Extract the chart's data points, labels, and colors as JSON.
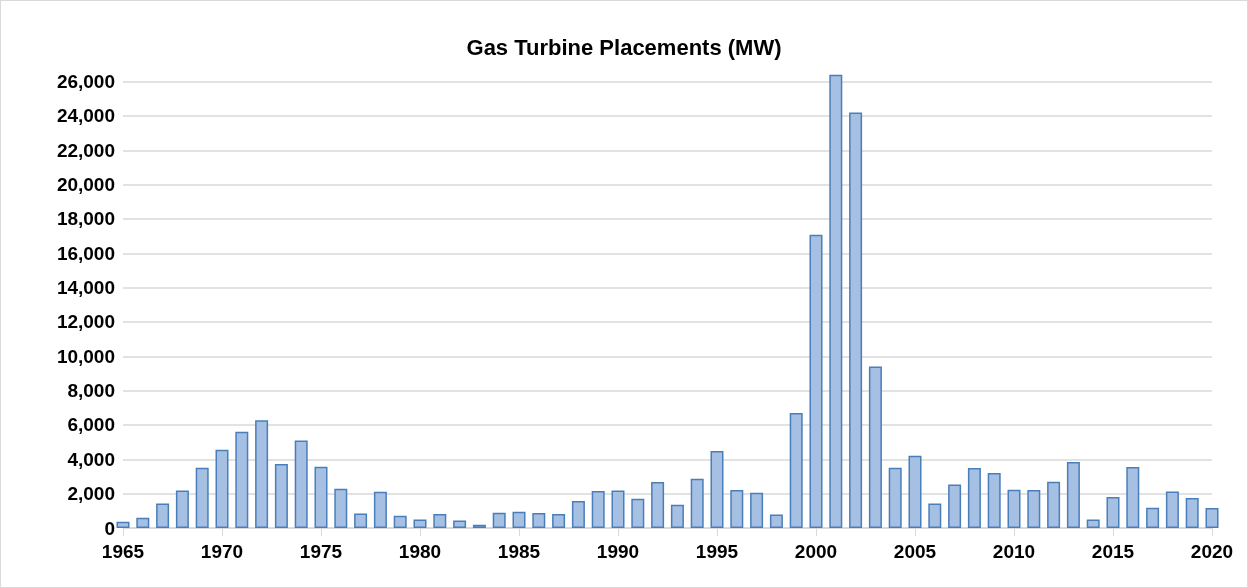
{
  "chart_data": {
    "type": "bar",
    "title": "Gas Turbine Placements (MW)",
    "x": [
      1965,
      1966,
      1967,
      1968,
      1969,
      1970,
      1971,
      1972,
      1973,
      1974,
      1975,
      1976,
      1977,
      1978,
      1979,
      1980,
      1981,
      1982,
      1983,
      1984,
      1985,
      1986,
      1987,
      1988,
      1989,
      1990,
      1991,
      1992,
      1993,
      1994,
      1995,
      1996,
      1997,
      1998,
      1999,
      2000,
      2001,
      2002,
      2003,
      2004,
      2005,
      2006,
      2007,
      2008,
      2009,
      2010,
      2011,
      2012,
      2013,
      2014,
      2015,
      2016,
      2017,
      2018,
      2019,
      2020
    ],
    "values": [
      370,
      600,
      1420,
      2190,
      3510,
      4560,
      5610,
      6270,
      3730,
      5090,
      3570,
      2290,
      850,
      2110,
      720,
      490,
      810,
      430,
      190,
      890,
      950,
      870,
      810,
      1570,
      2150,
      2190,
      1710,
      2680,
      1360,
      2870,
      4480,
      2210,
      2060,
      780,
      6700,
      17080,
      26400,
      24200,
      9400,
      3510,
      4210,
      1420,
      2530,
      3490,
      3200,
      2230,
      2210,
      2700,
      3840,
      500,
      1800,
      3550,
      1180,
      2130,
      1750,
      1160
    ],
    "color": "#a6c0e4",
    "xlim": [
      1965,
      2020
    ],
    "xticks": [
      1965,
      1970,
      1975,
      1980,
      1985,
      1990,
      1995,
      2000,
      2005,
      2010,
      2015,
      2020
    ],
    "ylim": [
      0,
      26500
    ],
    "yticks": [
      0,
      {
        "value": 2000,
        "label": "2,000"
      },
      {
        "value": 4000,
        "label": "4,000"
      },
      {
        "value": 6000,
        "label": "6,000"
      },
      {
        "value": 8000,
        "label": "8,000"
      },
      {
        "value": 10000,
        "label": "10,000"
      },
      {
        "value": 12000,
        "label": "12,000"
      },
      {
        "value": 14000,
        "label": "14,000"
      },
      {
        "value": 16000,
        "label": "16,000"
      },
      {
        "value": 18000,
        "label": "18,000"
      },
      {
        "value": 20000,
        "label": "20,000"
      },
      {
        "value": 22000,
        "label": "22,000"
      },
      {
        "value": 24000,
        "label": "24,000"
      },
      {
        "value": 26000,
        "label": "26,000"
      }
    ],
    "grid": "y"
  }
}
